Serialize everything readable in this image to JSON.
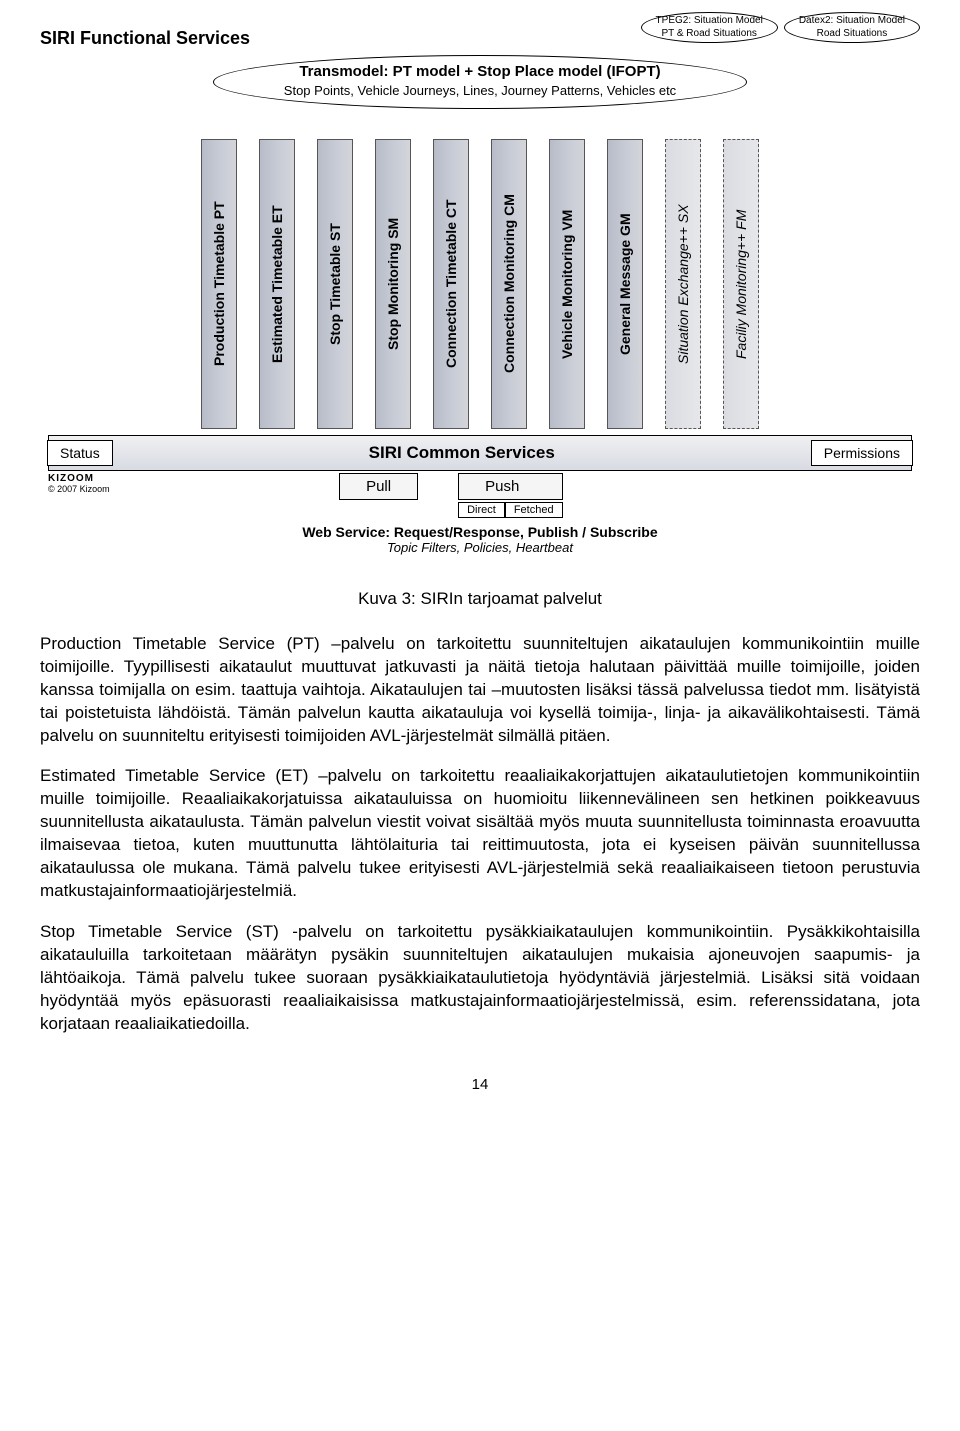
{
  "diagram": {
    "topLeft": "SIRI Functional Services",
    "topEllipses": [
      {
        "line1": "TPEG2: Situation Model",
        "line2": "PT & Road Situations"
      },
      {
        "line1": "Datex2: Situation Model",
        "line2": "Road Situations"
      }
    ],
    "bigEllipse": {
      "bold": "Transmodel: PT model + Stop Place model (IFOPT)",
      "norm": "Stop Points, Vehicle Journeys, Lines, Journey Patterns, Vehicles etc"
    },
    "services": [
      {
        "label": "Production Timetable PT",
        "style": "solid"
      },
      {
        "label": "Estimated Timetable ET",
        "style": "solid"
      },
      {
        "label": "Stop Timetable ST",
        "style": "solid"
      },
      {
        "label": "Stop Monitoring SM",
        "style": "solid"
      },
      {
        "label": "Connection Timetable CT",
        "style": "solid"
      },
      {
        "label": "Connection Monitoring CM",
        "style": "solid"
      },
      {
        "label": "Vehicle Monitoring VM",
        "style": "solid"
      },
      {
        "label": "General Message GM",
        "style": "solid"
      },
      {
        "label": "Situation Exchange++ SX",
        "style": "dashed"
      },
      {
        "label": "Faciliy Monitoring++ FM",
        "style": "dashed"
      }
    ],
    "band": {
      "left": "Status",
      "mid": "SIRI Common Services",
      "right": "Permissions"
    },
    "pull": "Pull",
    "push": "Push",
    "direct": "Direct",
    "fetched": "Fetched",
    "copyright1": "KIZOOM",
    "copyright2": "© 2007 Kizoom",
    "web": {
      "t1": "Web Service: Request/Response, Publish / Subscribe",
      "t2": "Topic Filters, Policies, Heartbeat"
    }
  },
  "caption": "Kuva 3: SIRIn tarjoamat palvelut",
  "paragraphs": [
    "Production Timetable Service (PT) –palvelu on tarkoitettu suunniteltujen aikataulujen kommunikointiin muille toimijoille. Tyypillisesti aikataulut muuttuvat jatkuvasti ja näitä tietoja halutaan päivittää muille toimijoille, joiden kanssa toimijalla on esim. taattuja vaihtoja. Aikataulujen tai –muutosten lisäksi tässä palvelussa tiedot mm. lisätyistä tai poistetuista lähdöistä. Tämän palvelun kautta aikatauluja voi kysellä toimija-, linja- ja aikavälikohtaisesti. Tämä palvelu on suunniteltu erityisesti toimijoiden AVL-järjestelmät silmällä pitäen.",
    "Estimated Timetable Service (ET) –palvelu on tarkoitettu reaaliaikakorjattujen aikataulutietojen kommunikointiin muille toimijoille. Reaaliaikakorjatuissa aikatauluissa on huomioitu liikennevälineen sen hetkinen poikkeavuus suunnitellusta aikataulusta. Tämän palvelun viestit voivat sisältää myös muuta suunnitellusta toiminnasta eroavuutta ilmaisevaa tietoa, kuten muuttunutta lähtölaituria tai reittimuutosta, jota ei kyseisen päivän suunnitellussa aikataulussa ole mukana. Tämä palvelu tukee erityisesti AVL-järjestelmiä sekä reaaliaikaiseen tietoon perustuvia matkustajainformaatiojärjestelmiä.",
    "Stop Timetable Service (ST) -palvelu on tarkoitettu pysäkkiaikataulujen kommunikointiin. Pysäkkikohtaisilla aikatauluilla tarkoitetaan määrätyn pysäkin suunniteltujen aikataulujen mukaisia ajoneuvojen saapumis- ja lähtöaikoja. Tämä palvelu tukee suoraan pysäkkiaikataulutietoja hyödyntäviä järjestelmiä. Lisäksi sitä voidaan hyödyntää myös epäsuorasti reaaliaikaisissa matkustajainformaatiojärjestelmissä, esim. referenssidatana, jota korjataan reaaliaikatiedoilla."
  ],
  "pageNumber": "14"
}
